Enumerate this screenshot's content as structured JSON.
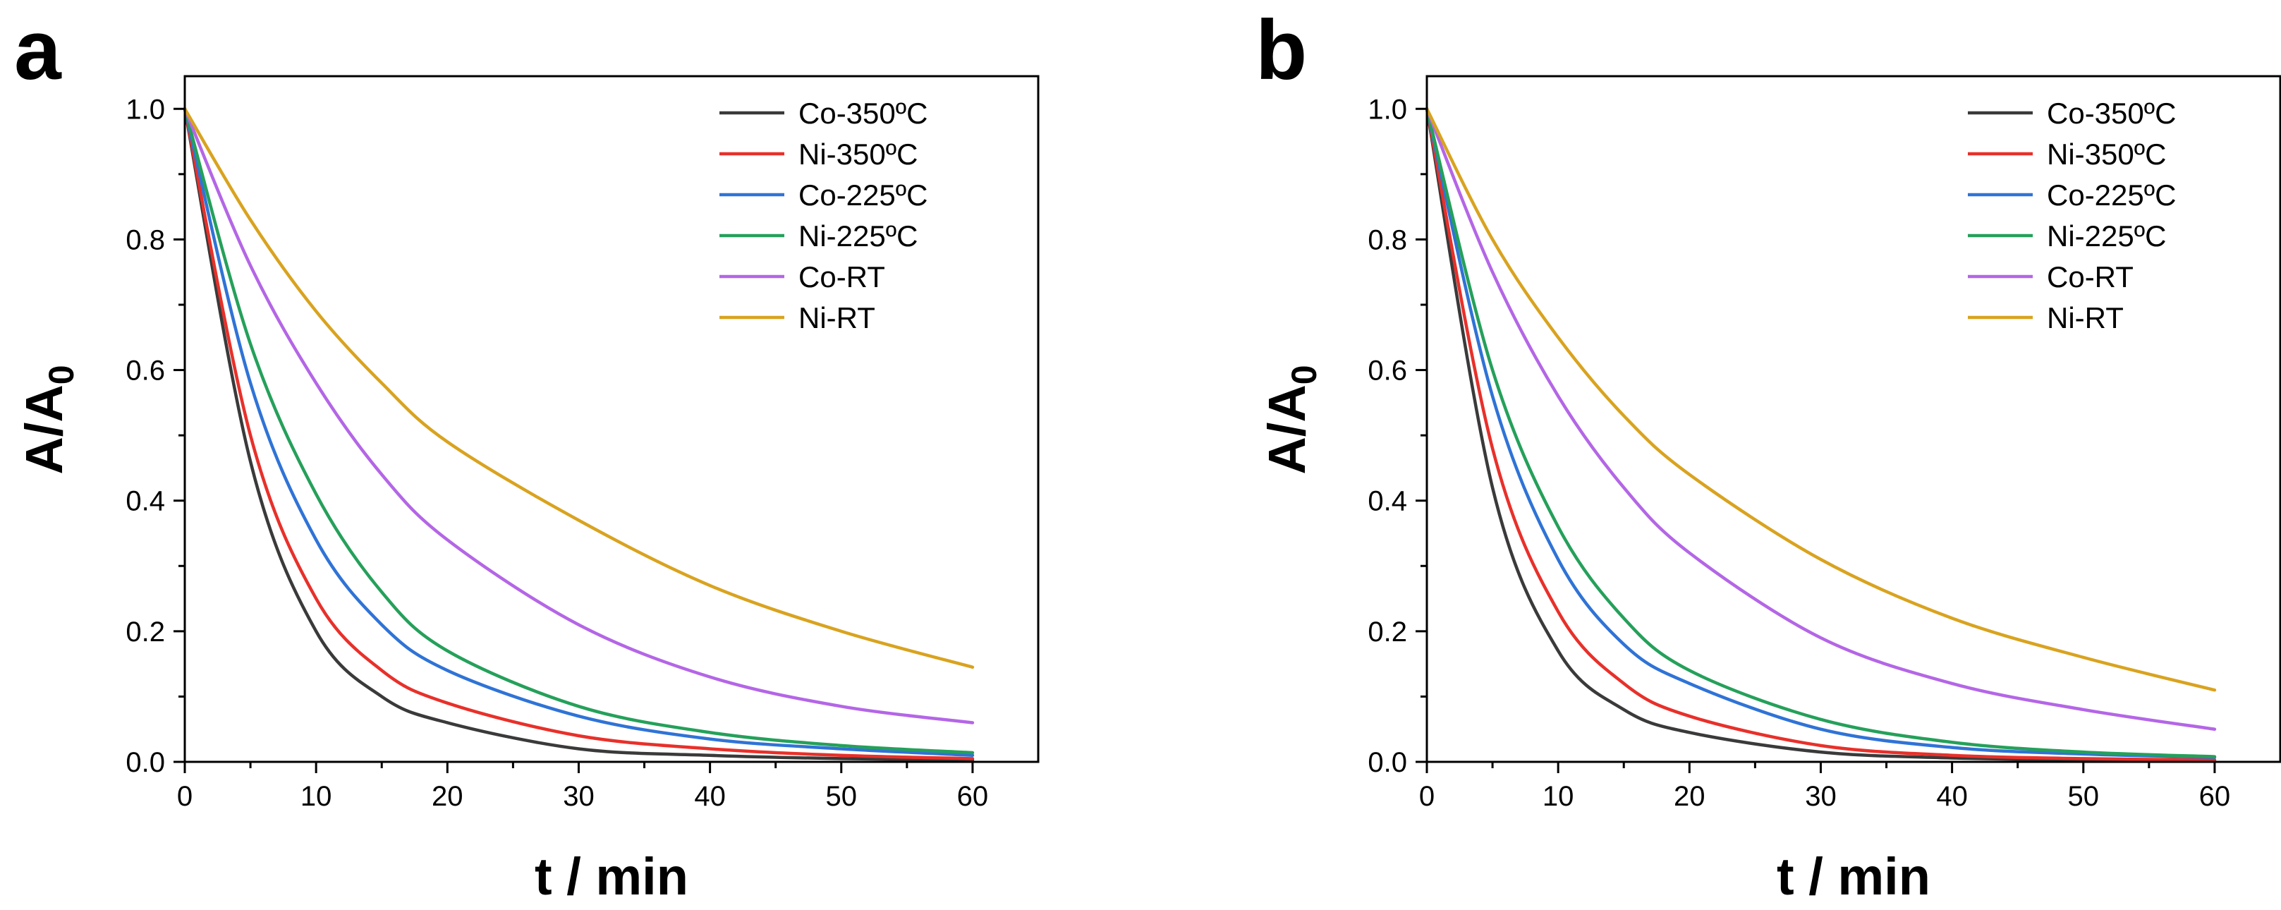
{
  "chart_data": [
    {
      "panel": "a",
      "type": "line",
      "xlabel": "t / min",
      "ylabel": "A/A",
      "ylabel_sub": "0",
      "xlim": [
        0,
        65
      ],
      "ylim": [
        0,
        1.05
      ],
      "xticks": [
        "0",
        "10",
        "20",
        "30",
        "40",
        "50",
        "60"
      ],
      "yticks": [
        "0.0",
        "0.2",
        "0.4",
        "0.6",
        "0.8",
        "1.0"
      ],
      "x": [
        0,
        5,
        10,
        15,
        20,
        30,
        40,
        50,
        60
      ],
      "legend_position": "top-right",
      "series": [
        {
          "name": "Co-350ºC",
          "color": "#3a3a3a",
          "values": [
            1.0,
            0.46,
            0.2,
            0.1,
            0.06,
            0.02,
            0.01,
            0.005,
            0.003
          ]
        },
        {
          "name": "Ni-350ºC",
          "color": "#e8302a",
          "values": [
            1.0,
            0.5,
            0.25,
            0.14,
            0.09,
            0.04,
            0.02,
            0.01,
            0.005
          ]
        },
        {
          "name": "Co-225ºC",
          "color": "#2f73d6",
          "values": [
            1.0,
            0.58,
            0.34,
            0.21,
            0.14,
            0.07,
            0.035,
            0.02,
            0.01
          ]
        },
        {
          "name": "Ni-225ºC",
          "color": "#25a05a",
          "values": [
            1.0,
            0.64,
            0.41,
            0.26,
            0.17,
            0.085,
            0.045,
            0.025,
            0.014
          ]
        },
        {
          "name": "Co-RT",
          "color": "#b466e6",
          "values": [
            1.0,
            0.76,
            0.58,
            0.44,
            0.34,
            0.21,
            0.13,
            0.085,
            0.06
          ]
        },
        {
          "name": "Ni-RT",
          "color": "#d9a31f",
          "values": [
            1.0,
            0.83,
            0.69,
            0.58,
            0.49,
            0.37,
            0.27,
            0.2,
            0.145
          ]
        }
      ]
    },
    {
      "panel": "b",
      "type": "line",
      "xlabel": "t / min",
      "ylabel": "A/A",
      "ylabel_sub": "0",
      "xlim": [
        0,
        65
      ],
      "ylim": [
        0,
        1.05
      ],
      "xticks": [
        "0",
        "10",
        "20",
        "30",
        "40",
        "50",
        "60"
      ],
      "yticks": [
        "0.0",
        "0.2",
        "0.4",
        "0.6",
        "0.8",
        "1.0"
      ],
      "x": [
        0,
        5,
        10,
        15,
        20,
        30,
        40,
        50,
        60
      ],
      "legend_position": "top-right",
      "series": [
        {
          "name": "Co-350ºC",
          "color": "#3a3a3a",
          "values": [
            1.0,
            0.42,
            0.17,
            0.08,
            0.045,
            0.015,
            0.006,
            0.003,
            0.002
          ]
        },
        {
          "name": "Ni-350ºC",
          "color": "#e8302a",
          "values": [
            1.0,
            0.48,
            0.23,
            0.12,
            0.07,
            0.025,
            0.01,
            0.005,
            0.003
          ]
        },
        {
          "name": "Co-225ºC",
          "color": "#2f73d6",
          "values": [
            1.0,
            0.56,
            0.31,
            0.18,
            0.12,
            0.05,
            0.022,
            0.012,
            0.007
          ]
        },
        {
          "name": "Ni-225ºC",
          "color": "#25a05a",
          "values": [
            1.0,
            0.6,
            0.36,
            0.22,
            0.14,
            0.065,
            0.03,
            0.015,
            0.008
          ]
        },
        {
          "name": "Co-RT",
          "color": "#b466e6",
          "values": [
            1.0,
            0.75,
            0.56,
            0.42,
            0.32,
            0.19,
            0.12,
            0.08,
            0.05
          ]
        },
        {
          "name": "Ni-RT",
          "color": "#d9a31f",
          "values": [
            1.0,
            0.8,
            0.65,
            0.53,
            0.44,
            0.31,
            0.22,
            0.16,
            0.11
          ]
        }
      ]
    }
  ]
}
